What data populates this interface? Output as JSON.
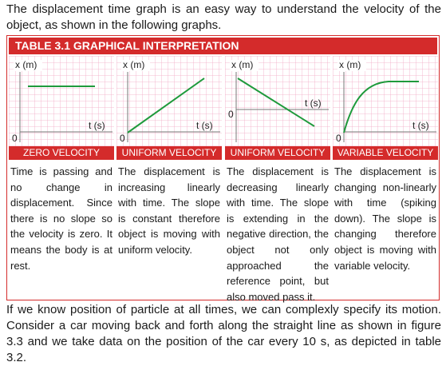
{
  "intro": "The displacement time graph is an easy way to understand the velocity of the object, as shown in the following graphs.",
  "table": {
    "title": "TABLE 3.1 GRAPHICAL INTERPRETATION",
    "columns": [
      {
        "y_label": "x (m)",
        "x_label": "t (s)",
        "origin": "0",
        "caption": "ZERO VELOCITY",
        "description": "Time is passing and no change in displacement. Since there is no slope so the velocity is zero. It means the body is at rest."
      },
      {
        "y_label": "x (m)",
        "x_label": "t (s)",
        "origin": "0",
        "caption": "UNIFORM VELOCITY",
        "description": "The displacement is increasing linearly with time. The slope is constant therefore object is moving with uniform velocity."
      },
      {
        "y_label": "x (m)",
        "x_label": "t (s)",
        "origin": "0",
        "caption": "UNIFORM VELOCITY",
        "description": "The displacement is decreasing linearly with time. The slope is extending in the negative direction, the object not only approached the reference point, but also moved pass it."
      },
      {
        "y_label": "x (m)",
        "x_label": "t (s)",
        "origin": "0",
        "caption": "VARIABLE VELOCITY",
        "description": "The displacement is changing non-linearly with time (spiking down). The slope is changing therefore object is moving with variable velocity."
      }
    ]
  },
  "outro": "If we know position of particle at all times, we can complexly specify its motion. Consider a car moving back and forth along the straight line as shown in figure 3.3 and we take data on the position of the car every 10 s, as depicted in table 3.2."
}
